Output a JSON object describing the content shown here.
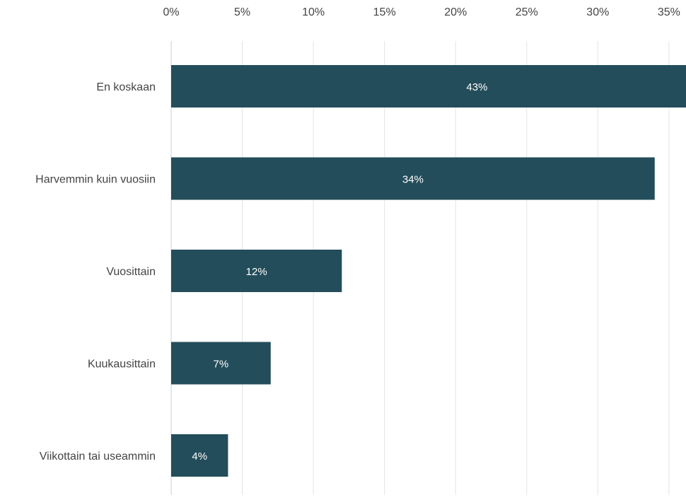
{
  "chart_data": {
    "type": "hbar",
    "categories": [
      "En koskaan",
      "Harvemmin kuin vuosiin",
      "Vuosittain",
      "Kuukausittain",
      "Viikottain tai useammin"
    ],
    "values": [
      43,
      34,
      12,
      7,
      4
    ],
    "value_labels": [
      "43%",
      "34%",
      "12%",
      "7%",
      "4%"
    ],
    "color": "#234d5a",
    "xlim": [
      0,
      36.2
    ],
    "xticks": [
      {
        "value": 0,
        "label": "0%"
      },
      {
        "value": 5,
        "label": "5%"
      },
      {
        "value": 10,
        "label": "10%"
      },
      {
        "value": 15,
        "label": "15%"
      },
      {
        "value": 20,
        "label": "20%"
      },
      {
        "value": 25,
        "label": "25%"
      },
      {
        "value": 30,
        "label": "30%"
      },
      {
        "value": 35,
        "label": "35%"
      }
    ],
    "grid": true
  }
}
